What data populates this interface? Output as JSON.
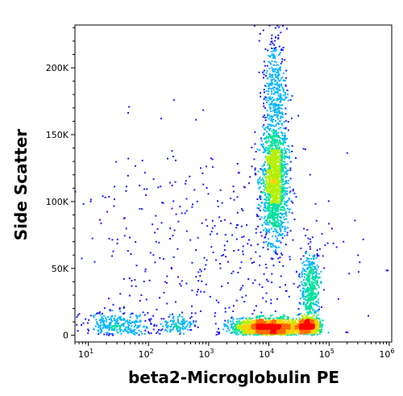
{
  "chart_data": {
    "type": "scatter",
    "title": "",
    "xlabel": "beta2-Microglobulin PE",
    "ylabel": "Side Scatter",
    "xscale": "log",
    "xlim": [
      6,
      1100000.0
    ],
    "ylim": [
      -5000,
      232000
    ],
    "x_ticks": [
      {
        "value": 10,
        "base": "10",
        "exp": "1"
      },
      {
        "value": 100,
        "base": "10",
        "exp": "2"
      },
      {
        "value": 1000,
        "base": "10",
        "exp": "3"
      },
      {
        "value": 10000,
        "base": "10",
        "exp": "4"
      },
      {
        "value": 100000,
        "base": "10",
        "exp": "5"
      },
      {
        "value": 1000000,
        "base": "10",
        "exp": "6"
      }
    ],
    "y_ticks": [
      {
        "value": 0,
        "label": "0"
      },
      {
        "value": 50000,
        "label": "50K"
      },
      {
        "value": 100000,
        "label": "100K"
      },
      {
        "value": 150000,
        "label": "150K"
      },
      {
        "value": 200000,
        "label": "200K"
      }
    ],
    "density_colormap": [
      "#1a1aff",
      "#00b4ff",
      "#00e0a0",
      "#b4f000",
      "#ffd200",
      "#ff6a00",
      "#ff0000"
    ],
    "populations": [
      {
        "name": "",
        "log10_x_center": 4.1,
        "y_center": 115000,
        "log10_x_spread": 0.11,
        "y_spread": 22000,
        "points": 1500
      },
      {
        "name": "",
        "log10_x_center": 4.1,
        "y_center": 185000,
        "log10_x_spread": 0.1,
        "y_spread": 22000,
        "points": 350
      },
      {
        "name": "",
        "log10_x_center": 4.0,
        "y_center": 5500,
        "log10_x_spread": 0.3,
        "y_spread": 3500,
        "points": 1800
      },
      {
        "name": "",
        "log10_x_center": 4.65,
        "y_center": 7000,
        "log10_x_spread": 0.1,
        "y_spread": 3000,
        "points": 600
      },
      {
        "name": "",
        "log10_x_center": 4.7,
        "y_center": 35000,
        "log10_x_spread": 0.08,
        "y_spread": 14000,
        "points": 450
      },
      {
        "name": "",
        "log10_x_center": 1.5,
        "y_center": 6000,
        "log10_x_spread": 0.3,
        "y_spread": 6000,
        "points": 350
      },
      {
        "name": "",
        "log10_x_center": 2.5,
        "y_center": 8000,
        "log10_x_spread": 0.15,
        "y_spread": 3500,
        "points": 120
      },
      {
        "name": "",
        "log10_x_center": 3.0,
        "y_center": 60000,
        "log10_x_spread": 1.2,
        "y_spread": 45000,
        "points": 450
      }
    ],
    "grid": false,
    "legend": "none"
  }
}
